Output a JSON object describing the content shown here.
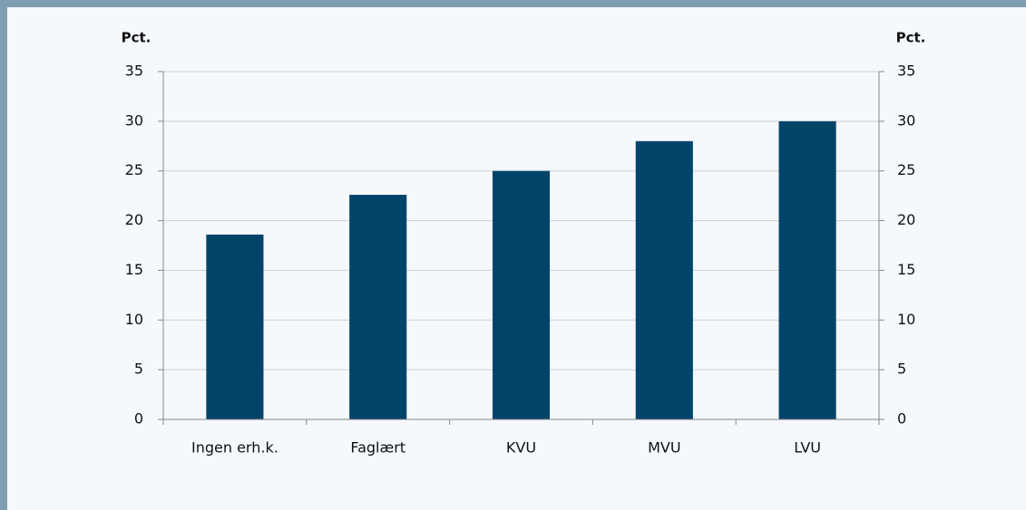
{
  "chart_data": {
    "type": "bar",
    "y_label": "Pct.",
    "y2_label": "Pct.",
    "categories": [
      "Ingen erh.k.",
      "Faglært",
      "KVU",
      "MVU",
      "LVU"
    ],
    "values": [
      18.6,
      22.6,
      25,
      28,
      30
    ],
    "color": "#00446a",
    "ylim": [
      0,
      35
    ],
    "yticks": [
      0,
      5,
      10,
      15,
      20,
      25,
      30,
      35
    ],
    "y2lim": [
      0,
      35
    ],
    "y2ticks": [
      0,
      5,
      10,
      15,
      20,
      25,
      30,
      35
    ],
    "grid": true
  }
}
